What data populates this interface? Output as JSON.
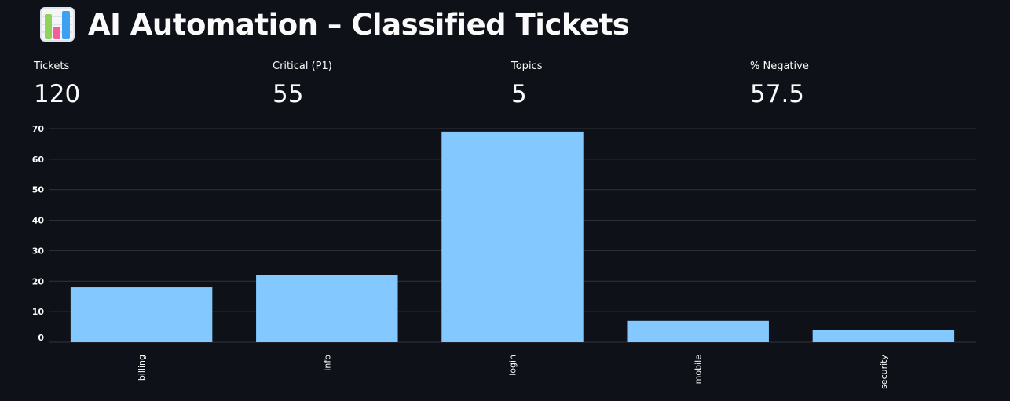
{
  "header": {
    "title": "AI Automation – Classified Tickets",
    "icon": "bar-chart-icon"
  },
  "metrics": [
    {
      "label": "Tickets",
      "value": "120"
    },
    {
      "label": "Critical (P1)",
      "value": "55"
    },
    {
      "label": "Topics",
      "value": "5"
    },
    {
      "label": "% Negative",
      "value": "57.5"
    }
  ],
  "colors": {
    "background": "#0e1117",
    "bar": "#83c9ff",
    "grid": "#31333f",
    "text": "#fafafa"
  },
  "chart_data": {
    "type": "bar",
    "categories": [
      "billing",
      "info",
      "login",
      "mobile",
      "security"
    ],
    "values": [
      18,
      22,
      69,
      7,
      4
    ],
    "yticks": [
      0,
      10,
      20,
      30,
      40,
      50,
      60,
      70
    ],
    "ylim": [
      0,
      70
    ],
    "grid": true,
    "xlabel": "",
    "ylabel": ""
  }
}
